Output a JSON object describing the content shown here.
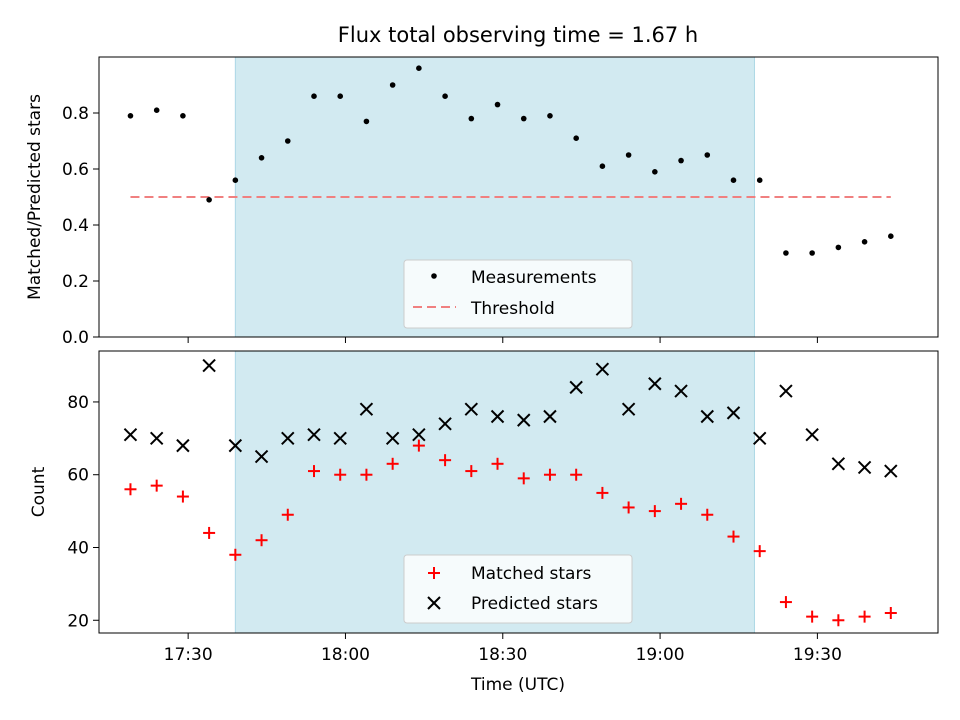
{
  "figure": {
    "title": "Flux total observing time = 1.67 h",
    "xlabel": "Time (UTC)",
    "shade_color": "#add8e6"
  },
  "chart_data": [
    {
      "type": "scatter",
      "ylabel": "Matched/Predicted stars",
      "xlim": [
        "17:13",
        "19:53"
      ],
      "ylim": [
        0,
        1.0
      ],
      "yticks": [
        0.0,
        0.2,
        0.4,
        0.6,
        0.8
      ],
      "ytick_labels": [
        "0.0",
        "0.2",
        "0.4",
        "0.6",
        "0.8"
      ],
      "shaded_range": [
        "17:39",
        "19:18"
      ],
      "legend": {
        "placement": "lower center",
        "entries": [
          "Measurements",
          "Threshold"
        ]
      },
      "series": [
        {
          "name": "Measurements",
          "marker": "dot",
          "color": "#000000",
          "x": [
            "17:19",
            "17:24",
            "17:29",
            "17:34",
            "17:39",
            "17:44",
            "17:49",
            "17:54",
            "17:59",
            "18:04",
            "18:09",
            "18:14",
            "18:19",
            "18:24",
            "18:29",
            "18:34",
            "18:39",
            "18:44",
            "18:49",
            "18:54",
            "18:59",
            "19:04",
            "19:09",
            "19:14",
            "19:19",
            "19:24",
            "19:29",
            "19:34",
            "19:39",
            "19:44"
          ],
          "y": [
            0.79,
            0.81,
            0.79,
            0.49,
            0.56,
            0.64,
            0.7,
            0.86,
            0.86,
            0.77,
            0.9,
            0.96,
            0.86,
            0.78,
            0.83,
            0.78,
            0.79,
            0.71,
            0.61,
            0.65,
            0.59,
            0.63,
            0.65,
            0.56,
            0.56,
            0.3,
            0.3,
            0.32,
            0.34,
            0.36
          ]
        },
        {
          "name": "Threshold",
          "style": "dashed",
          "color": "#f08080",
          "x": [
            "17:19",
            "19:44"
          ],
          "y": [
            0.5,
            0.5
          ]
        }
      ]
    },
    {
      "type": "scatter",
      "ylabel": "Count",
      "xlim": [
        "17:13",
        "19:53"
      ],
      "ylim": [
        16.5,
        94
      ],
      "yticks": [
        20,
        40,
        60,
        80
      ],
      "ytick_labels": [
        "20",
        "40",
        "60",
        "80"
      ],
      "xtick_labels": [
        "17:30",
        "18:00",
        "18:30",
        "19:00",
        "19:30"
      ],
      "xticks": [
        "17:30",
        "18:00",
        "18:30",
        "19:00",
        "19:30"
      ],
      "shaded_range": [
        "17:39",
        "19:18"
      ],
      "legend": {
        "placement": "lower center",
        "entries": [
          "Matched stars",
          "Predicted stars"
        ]
      },
      "series": [
        {
          "name": "Matched stars",
          "marker": "plus",
          "color": "#ff0000",
          "x": [
            "17:19",
            "17:24",
            "17:29",
            "17:34",
            "17:39",
            "17:44",
            "17:49",
            "17:54",
            "17:59",
            "18:04",
            "18:09",
            "18:14",
            "18:19",
            "18:24",
            "18:29",
            "18:34",
            "18:39",
            "18:44",
            "18:49",
            "18:54",
            "18:59",
            "19:04",
            "19:09",
            "19:14",
            "19:19",
            "19:24",
            "19:29",
            "19:34",
            "19:39",
            "19:44"
          ],
          "y": [
            56,
            57,
            54,
            44,
            38,
            42,
            49,
            61,
            60,
            60,
            63,
            68,
            64,
            61,
            63,
            59,
            60,
            60,
            55,
            51,
            50,
            52,
            49,
            43,
            39,
            25,
            21,
            20,
            21,
            22
          ]
        },
        {
          "name": "Predicted stars",
          "marker": "x",
          "color": "#000000",
          "x": [
            "17:19",
            "17:24",
            "17:29",
            "17:34",
            "17:39",
            "17:44",
            "17:49",
            "17:54",
            "17:59",
            "18:04",
            "18:09",
            "18:14",
            "18:19",
            "18:24",
            "18:29",
            "18:34",
            "18:39",
            "18:44",
            "18:49",
            "18:54",
            "18:59",
            "19:04",
            "19:09",
            "19:14",
            "19:19",
            "19:24",
            "19:29",
            "19:34",
            "19:39",
            "19:44"
          ],
          "y": [
            71,
            70,
            68,
            90,
            68,
            65,
            70,
            71,
            70,
            78,
            70,
            71,
            74,
            78,
            76,
            75,
            76,
            84,
            89,
            78,
            85,
            83,
            76,
            77,
            70,
            83,
            71,
            63,
            62,
            61
          ]
        }
      ]
    }
  ]
}
